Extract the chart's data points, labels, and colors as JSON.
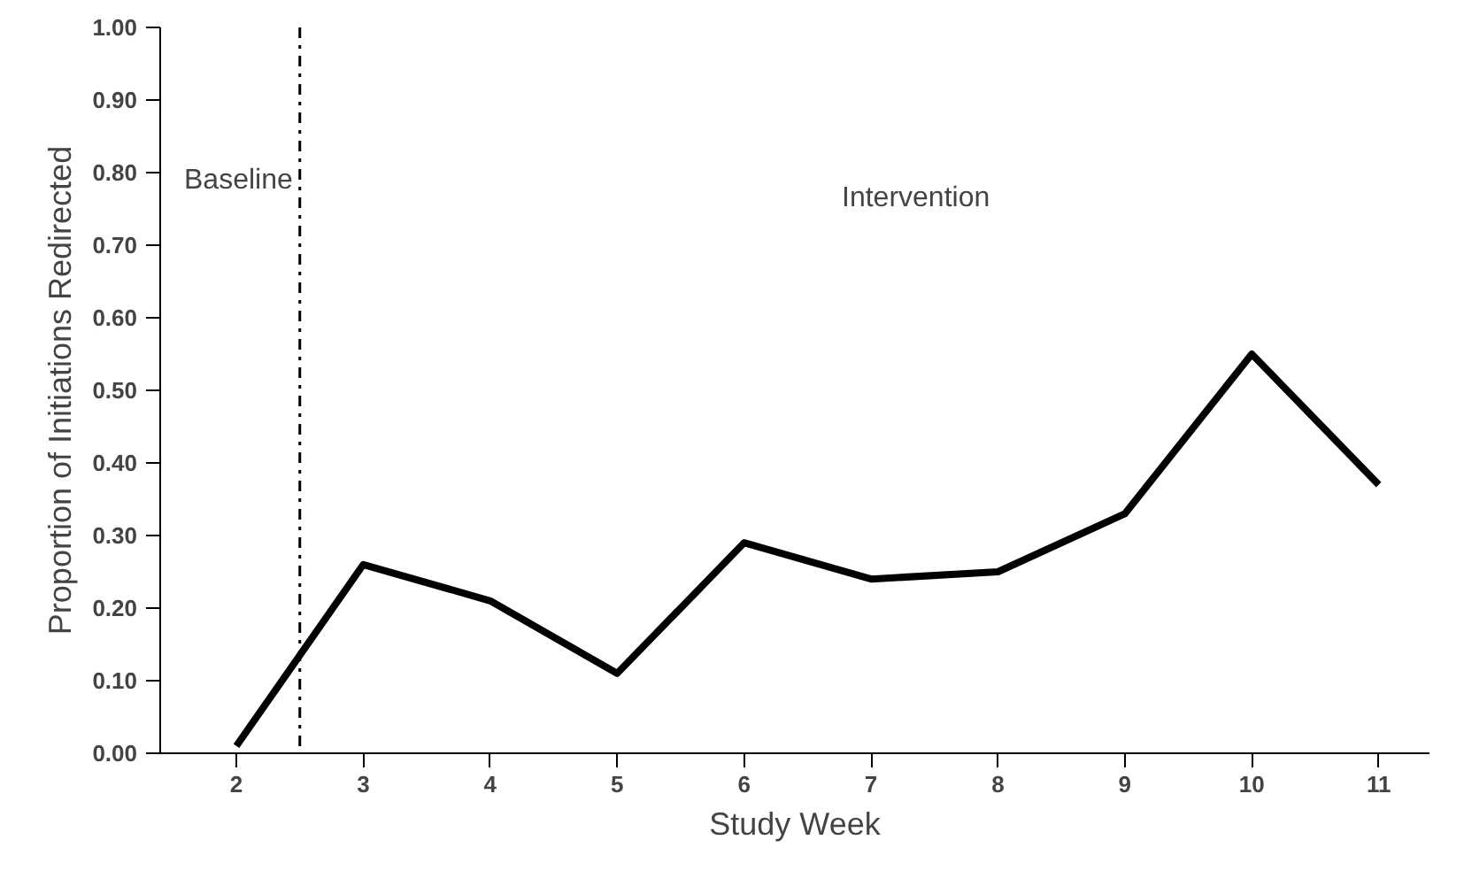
{
  "chart_data": {
    "type": "line",
    "xlabel": "Study Week",
    "ylabel": "Proportion of Initiations Redirected",
    "x": [
      2,
      3,
      4,
      5,
      6,
      7,
      8,
      9,
      10,
      11
    ],
    "series": [
      {
        "color": "#000000",
        "values": [
          0.01,
          0.26,
          0.21,
          0.11,
          0.29,
          0.24,
          0.25,
          0.33,
          0.55,
          0.37
        ]
      }
    ],
    "xlim": [
      1.4,
      11.4
    ],
    "xticks": [
      2,
      3,
      4,
      5,
      6,
      7,
      8,
      9,
      10,
      11
    ],
    "ylim": [
      0,
      1
    ],
    "yticks": [
      {
        "value": 0,
        "label": "0.00"
      },
      {
        "value": 0.1,
        "label": "0.10"
      },
      {
        "value": 0.2,
        "label": "0.20"
      },
      {
        "value": 0.3,
        "label": "0.30"
      },
      {
        "value": 0.4,
        "label": "0.40"
      },
      {
        "value": 0.5,
        "label": "0.50"
      },
      {
        "value": 0.6,
        "label": "0.60"
      },
      {
        "value": 0.7,
        "label": "0.70"
      },
      {
        "value": 0.8,
        "label": "0.80"
      },
      {
        "value": 0.9,
        "label": "0.90"
      },
      {
        "value": 1,
        "label": "1.00"
      }
    ],
    "ref_lines": [
      {
        "axis": "x",
        "value": 2.5,
        "label": "Baseline",
        "color": "#000000",
        "line_style": "dashed"
      }
    ],
    "annotations": [
      "Intervention"
    ],
    "grid": false,
    "marker": "none",
    "line_style": "solid"
  }
}
